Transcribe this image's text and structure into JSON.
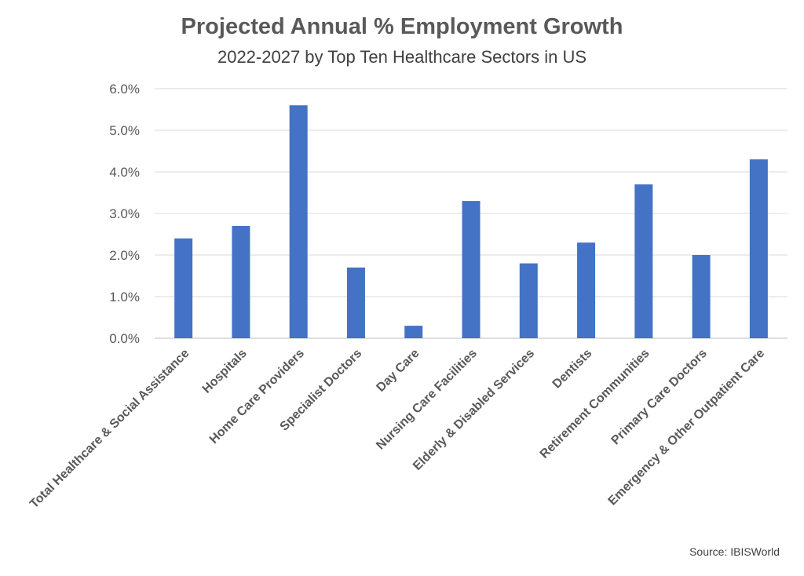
{
  "chart_data": {
    "type": "bar",
    "title": "Projected Annual % Employment Growth",
    "subtitle": "2022-2027 by Top Ten Healthcare Sectors in US",
    "categories": [
      "Total Healthcare & Social Assistance",
      "Hospitals",
      "Home Care Providers",
      "Specialist Doctors",
      "Day Care",
      "Nursing Care Facilities",
      "Elderly & Disabled Services",
      "Dentists",
      "Retirement Communities",
      "Primary Care Doctors",
      "Emergency & Other Outpatient Care"
    ],
    "values": [
      2.4,
      2.7,
      5.6,
      1.7,
      0.3,
      3.3,
      1.8,
      2.3,
      3.7,
      2.0,
      4.3
    ],
    "ylim": [
      0,
      6
    ],
    "yticks": [
      "0.0%",
      "1.0%",
      "2.0%",
      "3.0%",
      "4.0%",
      "5.0%",
      "6.0%"
    ],
    "xlabel": "",
    "ylabel": "",
    "grid": true,
    "bar_color": "#4472C4",
    "source": "Source: IBISWorld"
  }
}
